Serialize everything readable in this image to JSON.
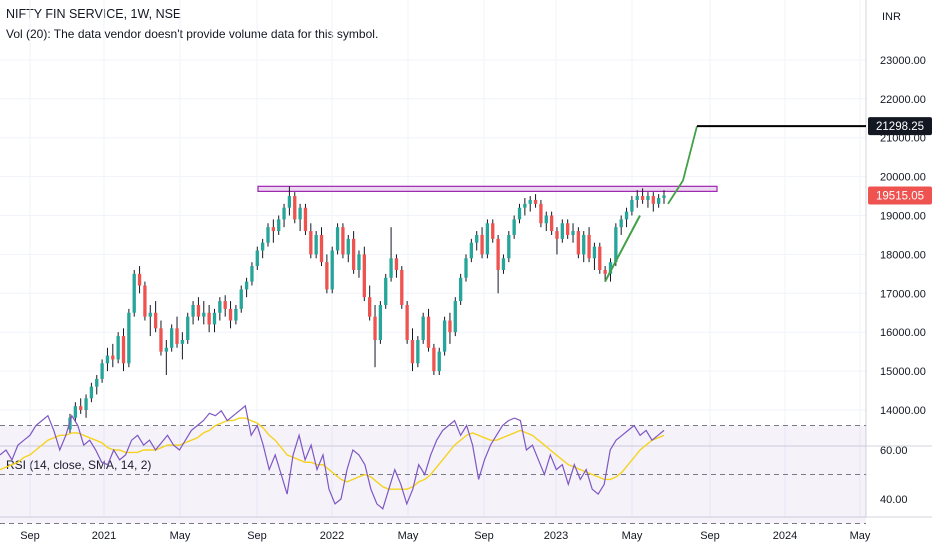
{
  "header": {
    "title": "NIFTY FIN SERVICE, 1W, NSE",
    "volume_note": "Vol (20): The data vendor doesn't provide volume data for this symbol."
  },
  "colors": {
    "up": "#26a69a",
    "down": "#ef5350",
    "wick": "#131722",
    "resistance_zone": "#9c27b0",
    "projection": "#43a047",
    "target_line": "#000000",
    "rsi_line": "#7e57c2",
    "rsi_sma": "#f5d320",
    "price_badge": "#ef5350"
  },
  "chart_data": [
    {
      "type": "candlestick",
      "title": "NIFTY FIN SERVICE, 1W, NSE",
      "currency_label": "INR",
      "y_ticks": [
        "23000.00",
        "22000.00",
        "21000.00",
        "20000.00",
        "19000.00",
        "18000.00",
        "17000.00",
        "16000.00",
        "15000.00",
        "14000.00"
      ],
      "x_ticks": [
        "Sep",
        "2021",
        "May",
        "Sep",
        "2022",
        "May",
        "Sep",
        "2023",
        "May",
        "Sep",
        "2024",
        "May"
      ],
      "ylim": [
        13200,
        24300
      ],
      "candles": [
        [
          13500,
          13900,
          13400,
          13800
        ],
        [
          13800,
          14200,
          13700,
          14100
        ],
        [
          14100,
          14300,
          13900,
          14000
        ],
        [
          14000,
          14400,
          13800,
          14300
        ],
        [
          14300,
          14700,
          14200,
          14600
        ],
        [
          14600,
          14900,
          14400,
          14800
        ],
        [
          14800,
          15300,
          14700,
          15200
        ],
        [
          15200,
          15600,
          15000,
          15400
        ],
        [
          15400,
          15700,
          15100,
          15300
        ],
        [
          15300,
          16000,
          15200,
          15900
        ],
        [
          15900,
          16100,
          15000,
          15200
        ],
        [
          15200,
          16600,
          15100,
          16500
        ],
        [
          16500,
          17600,
          16400,
          17500
        ],
        [
          17500,
          17700,
          17000,
          17200
        ],
        [
          17200,
          17300,
          16300,
          16400
        ],
        [
          16400,
          16700,
          15900,
          16500
        ],
        [
          16500,
          16800,
          16000,
          16100
        ],
        [
          16100,
          16300,
          15400,
          15500
        ],
        [
          15500,
          15800,
          14900,
          15600
        ],
        [
          15600,
          16200,
          15500,
          16100
        ],
        [
          16100,
          16400,
          15600,
          15700
        ],
        [
          15700,
          16000,
          15300,
          15800
        ],
        [
          15800,
          16500,
          15700,
          16400
        ],
        [
          16400,
          16800,
          16200,
          16700
        ],
        [
          16700,
          16900,
          16300,
          16400
        ],
        [
          16400,
          16800,
          16200,
          16500
        ],
        [
          16500,
          16700,
          16000,
          16200
        ],
        [
          16200,
          16600,
          16000,
          16500
        ],
        [
          16500,
          16900,
          16300,
          16800
        ],
        [
          16800,
          16950,
          16400,
          16600
        ],
        [
          16600,
          16800,
          16100,
          16300
        ],
        [
          16300,
          16700,
          16200,
          16600
        ],
        [
          16600,
          17200,
          16500,
          17100
        ],
        [
          17100,
          17400,
          16900,
          17300
        ],
        [
          17300,
          17800,
          17200,
          17700
        ],
        [
          17700,
          18200,
          17600,
          18100
        ],
        [
          18100,
          18400,
          17900,
          18300
        ],
        [
          18300,
          18800,
          18200,
          18700
        ],
        [
          18700,
          18900,
          18300,
          18600
        ],
        [
          18600,
          19000,
          18500,
          18900
        ],
        [
          18900,
          19300,
          18700,
          19200
        ],
        [
          19200,
          19750,
          19000,
          19500
        ],
        [
          19500,
          19600,
          18800,
          18900
        ],
        [
          18900,
          19300,
          18600,
          19200
        ],
        [
          19200,
          19300,
          18500,
          18600
        ],
        [
          18600,
          18800,
          17900,
          18000
        ],
        [
          18000,
          18600,
          17900,
          18500
        ],
        [
          18500,
          18700,
          17700,
          17800
        ],
        [
          17800,
          18000,
          17000,
          17100
        ],
        [
          17100,
          18200,
          17000,
          18100
        ],
        [
          18100,
          18800,
          18000,
          18700
        ],
        [
          18700,
          18800,
          17900,
          18000
        ],
        [
          18000,
          18500,
          17800,
          18400
        ],
        [
          18400,
          18600,
          17500,
          17600
        ],
        [
          17600,
          18100,
          17400,
          18000
        ],
        [
          18000,
          18200,
          16800,
          16900
        ],
        [
          16900,
          17200,
          16300,
          16400
        ],
        [
          16400,
          16700,
          15100,
          15800
        ],
        [
          15800,
          16800,
          15700,
          16700
        ],
        [
          16700,
          17500,
          16600,
          17400
        ],
        [
          17400,
          18700,
          17300,
          17900
        ],
        [
          17900,
          18000,
          17400,
          17600
        ],
        [
          17600,
          17700,
          16600,
          16700
        ],
        [
          16700,
          16800,
          15700,
          15800
        ],
        [
          15800,
          16100,
          15000,
          15200
        ],
        [
          15200,
          15900,
          15100,
          15800
        ],
        [
          15800,
          16500,
          15700,
          16400
        ],
        [
          16400,
          16600,
          15500,
          15600
        ],
        [
          15600,
          15700,
          14900,
          15000
        ],
        [
          15000,
          15600,
          14900,
          15500
        ],
        [
          15500,
          16400,
          15400,
          16300
        ],
        [
          16300,
          16500,
          15700,
          16000
        ],
        [
          16000,
          16900,
          15900,
          16800
        ],
        [
          16800,
          17500,
          16700,
          17400
        ],
        [
          17400,
          18000,
          17300,
          17900
        ],
        [
          17900,
          18400,
          17800,
          18300
        ],
        [
          18300,
          18600,
          18100,
          18500
        ],
        [
          18500,
          18700,
          17900,
          18000
        ],
        [
          18000,
          18900,
          17900,
          18800
        ],
        [
          18800,
          18900,
          18300,
          18400
        ],
        [
          18400,
          18500,
          17000,
          17600
        ],
        [
          17600,
          18000,
          17500,
          17900
        ],
        [
          17900,
          18600,
          17800,
          18500
        ],
        [
          18500,
          19000,
          18400,
          18900
        ],
        [
          18900,
          19300,
          18800,
          19200
        ],
        [
          19200,
          19450,
          19000,
          19300
        ],
        [
          19300,
          19500,
          19100,
          19400
        ],
        [
          19400,
          19550,
          19200,
          19300
        ],
        [
          19300,
          19400,
          18700,
          18800
        ],
        [
          18800,
          19100,
          18600,
          19000
        ],
        [
          19000,
          19100,
          18500,
          18600
        ],
        [
          18600,
          18700,
          18000,
          18400
        ],
        [
          18400,
          18900,
          18300,
          18800
        ],
        [
          18800,
          18900,
          18400,
          18500
        ],
        [
          18500,
          18800,
          18300,
          18600
        ],
        [
          18600,
          18700,
          17900,
          18000
        ],
        [
          18000,
          18600,
          17800,
          18500
        ],
        [
          18500,
          18700,
          17800,
          17900
        ],
        [
          17900,
          18300,
          17600,
          18200
        ],
        [
          18200,
          18300,
          17500,
          17600
        ],
        [
          17600,
          17700,
          17300,
          17500
        ],
        [
          17500,
          17900,
          17300,
          17800
        ],
        [
          17800,
          18800,
          17700,
          18700
        ],
        [
          18700,
          19000,
          18500,
          18900
        ],
        [
          18900,
          19200,
          18700,
          19100
        ],
        [
          19100,
          19500,
          19000,
          19400
        ],
        [
          19400,
          19650,
          19200,
          19500
        ],
        [
          19500,
          19700,
          19300,
          19400
        ],
        [
          19400,
          19600,
          19200,
          19500
        ],
        [
          19500,
          19600,
          19100,
          19300
        ],
        [
          19300,
          19550,
          19200,
          19450
        ],
        [
          19450,
          19650,
          19300,
          19515
        ]
      ],
      "resistance_zone": [
        19620,
        19750
      ],
      "projection_target": 21298.25,
      "last_price": 19515.05,
      "price_labels": {
        "target": "21298.25",
        "last": "19515.05"
      }
    },
    {
      "type": "line",
      "title": "RSI (14, close, SMA, 14, 2)",
      "y_ticks": [
        "60.00",
        "40.00"
      ],
      "ylim": [
        30,
        85
      ],
      "bands": [
        70,
        50,
        30
      ],
      "rsi": [
        58,
        60,
        56,
        62,
        64,
        66,
        70,
        72,
        74,
        68,
        60,
        66,
        74,
        70,
        62,
        64,
        60,
        55,
        54,
        60,
        56,
        58,
        64,
        66,
        62,
        64,
        60,
        63,
        66,
        62,
        60,
        64,
        68,
        70,
        72,
        75,
        74,
        76,
        72,
        74,
        76,
        78,
        66,
        70,
        62,
        52,
        58,
        50,
        42,
        58,
        66,
        56,
        62,
        52,
        58,
        44,
        38,
        40,
        52,
        60,
        58,
        54,
        44,
        38,
        36,
        44,
        52,
        46,
        38,
        44,
        54,
        50,
        58,
        64,
        68,
        70,
        72,
        66,
        70,
        62,
        48,
        56,
        62,
        66,
        70,
        72,
        73,
        72,
        60,
        62,
        56,
        50,
        58,
        52,
        54,
        46,
        54,
        48,
        52,
        44,
        42,
        46,
        60,
        64,
        66,
        68,
        70,
        66,
        68,
        64,
        66,
        68
      ],
      "rsi_sma": [
        52,
        53,
        54,
        55,
        57,
        58,
        60,
        62,
        64,
        65,
        66,
        66,
        67,
        67,
        66,
        65,
        64,
        63,
        61,
        60,
        60,
        59,
        59,
        59,
        60,
        60,
        60,
        61,
        62,
        62,
        62,
        63,
        64,
        65,
        67,
        68,
        70,
        71,
        72,
        72,
        73,
        73,
        72,
        71,
        69,
        66,
        64,
        61,
        58,
        57,
        56,
        55,
        55,
        54,
        54,
        52,
        50,
        48,
        47,
        48,
        49,
        50,
        49,
        47,
        45,
        44,
        44,
        44,
        44,
        45,
        47,
        48,
        50,
        53,
        56,
        59,
        62,
        64,
        66,
        67,
        66,
        65,
        64,
        64,
        65,
        66,
        67,
        68,
        67,
        66,
        64,
        62,
        60,
        58,
        56,
        54,
        53,
        52,
        51,
        50,
        49,
        48,
        48,
        49,
        51,
        54,
        57,
        60,
        62,
        64,
        65,
        66
      ]
    }
  ]
}
